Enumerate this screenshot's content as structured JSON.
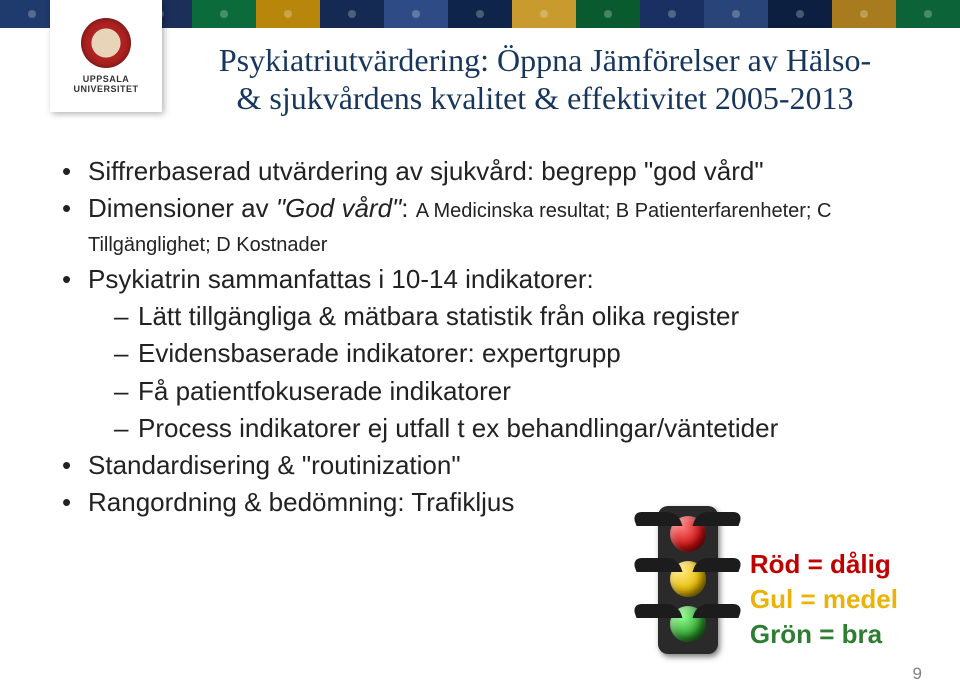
{
  "banner": {
    "colors": [
      "#1f3a6d",
      "#3a5a9a",
      "#1a2f5a",
      "#0b6b3a",
      "#b8860b",
      "#152a52",
      "#2f4b86",
      "#0f244a",
      "#c99a2e",
      "#0a5a30",
      "#1b3062",
      "#284478",
      "#0d1f40",
      "#a87c1e",
      "#0c6338"
    ]
  },
  "logo": {
    "line1": "UPPSALA",
    "line2": "UNIVERSITET"
  },
  "title": {
    "line1": "Psykiatriutvärdering: Öppna Jämförelser av Hälso-",
    "line2": "& sjukvårdens kvalitet & effektivitet 2005-2013",
    "color": "#17365d",
    "font_family": "Times New Roman",
    "font_size_pt": 24
  },
  "bullets": [
    {
      "text": "Siffrerbaserad utvärdering av sjukvård: begrepp \"god vård\""
    },
    {
      "prefix": "Dimensioner av ",
      "italic": "\"God vård\"",
      "suffix": ": ",
      "tail_small": "A Medicinska resultat; B Patienterfarenheter; C Tillgänglighet; D Kostnader"
    },
    {
      "text": "Psykiatrin  sammanfattas i 10-14 indikatorer:",
      "sub": [
        "Lätt tillgängliga & mätbara statistik från olika register",
        "Evidensbaserade indikatorer: expertgrupp",
        "Få patientfokuserade indikatorer",
        "Process indikatorer ej utfall t ex behandlingar/väntetider"
      ]
    },
    {
      "text": "Standardisering & \"routinization\""
    },
    {
      "text": "Rangordning & bedömning: Trafikljus"
    }
  ],
  "legend": {
    "red": {
      "label": "Röd = dålig",
      "color": "#c00000"
    },
    "yellow": {
      "label": "Gul = medel",
      "color": "#eab308"
    },
    "green": {
      "label": "Grön = bra",
      "color": "#2e7d32"
    }
  },
  "traffic_light": {
    "box_color": "#2a2a2a",
    "red": "#cc1111",
    "yellow": "#e6b800",
    "green": "#2e9e2e"
  },
  "page_number": "9",
  "body_font": {
    "family": "Arial",
    "size_pt": 20,
    "color": "#222222"
  },
  "background_color": "#ffffff"
}
